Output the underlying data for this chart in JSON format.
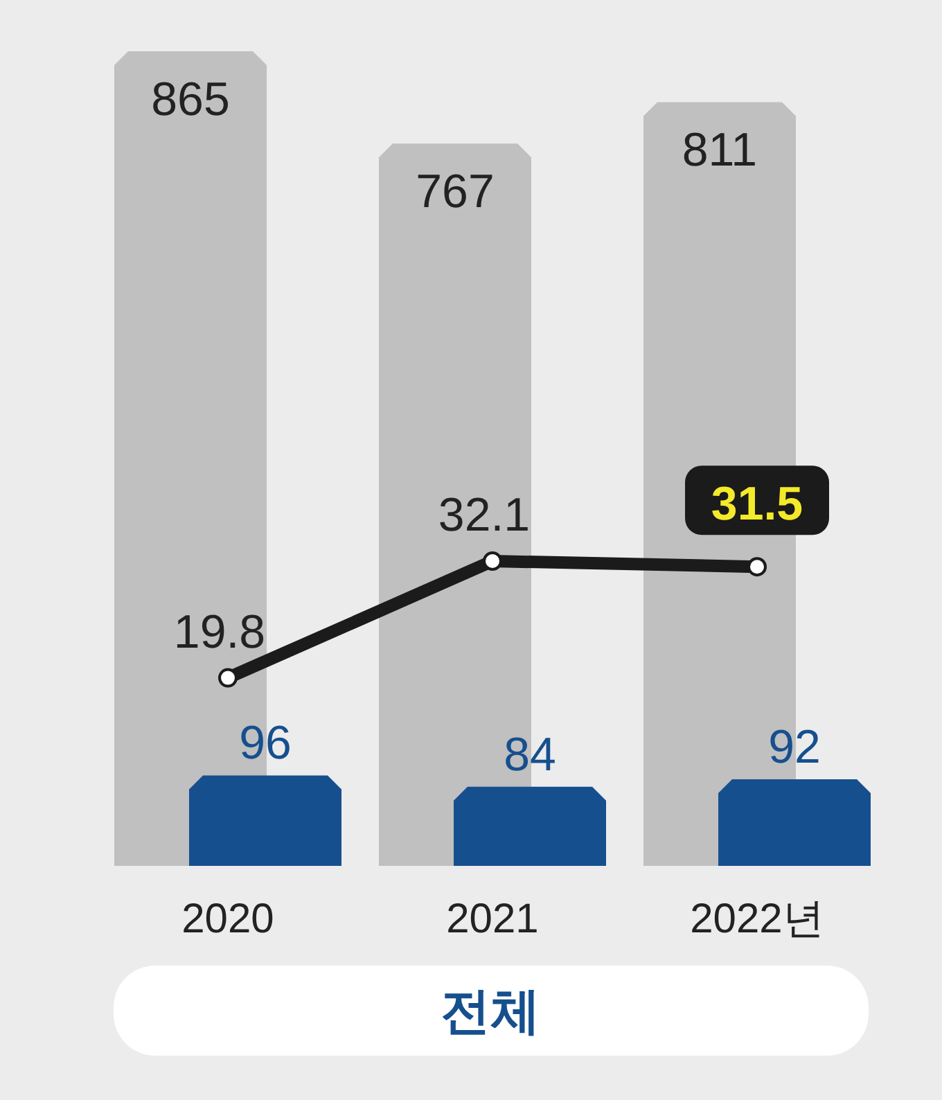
{
  "chart_data": {
    "type": "bar",
    "categories": [
      "2020",
      "2021",
      "2022년"
    ],
    "series": [
      {
        "color": "#c0c0c0",
        "values": [
          865,
          767,
          811
        ]
      },
      {
        "color": "#164f8e",
        "values": [
          96,
          84,
          92
        ]
      },
      {
        "type": "line",
        "axis": "y2",
        "color": "#1b1b1b",
        "marker": "circle",
        "values": [
          19.8,
          32.1,
          31.5
        ]
      }
    ],
    "data_labels": true,
    "tick_labels": "x",
    "annotations": [
      "전체"
    ]
  }
}
